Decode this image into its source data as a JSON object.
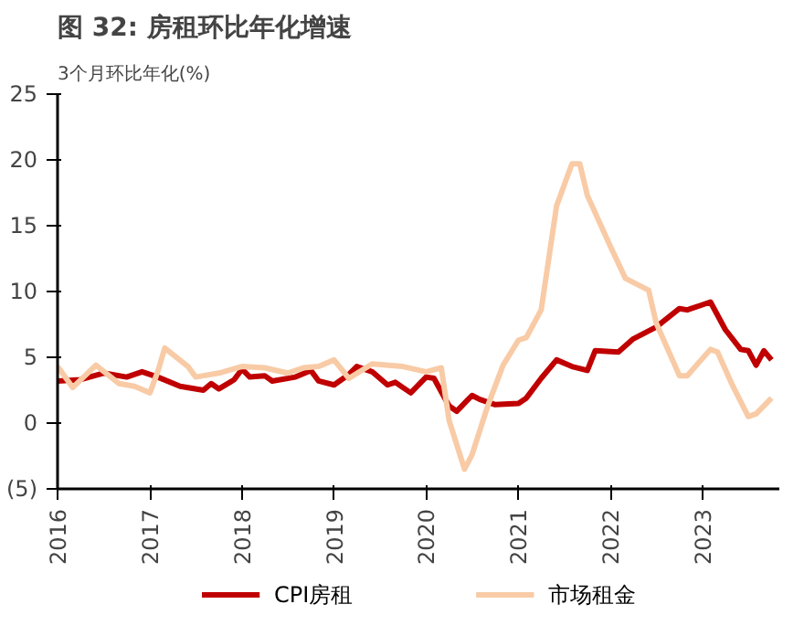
{
  "chart_data": {
    "type": "line",
    "title": "图 32: 房租环比年化增速",
    "ylabel": "3个月环比年化(%)",
    "xlim": [
      "2016-01",
      "2023-11"
    ],
    "xticks": [
      {
        "value": "2016-01",
        "label": "2016"
      },
      {
        "value": "2017-01",
        "label": "2017"
      },
      {
        "value": "2018-01",
        "label": "2018"
      },
      {
        "value": "2019-01",
        "label": "2019"
      },
      {
        "value": "2020-01",
        "label": "2020"
      },
      {
        "value": "2021-01",
        "label": "2021"
      },
      {
        "value": "2022-01",
        "label": "2022"
      },
      {
        "value": "2023-01",
        "label": "2023"
      }
    ],
    "ylim": [
      -5,
      25
    ],
    "yticks": [
      {
        "value": -5,
        "label": "(5)"
      },
      0,
      5,
      10,
      15,
      20,
      25
    ],
    "legend": "bottom",
    "marker": "none",
    "line_style": "solid",
    "series": [
      {
        "name": "CPI房租",
        "color": "#c00000",
        "x": [
          "2016-01",
          "2016-04",
          "2016-07",
          "2016-10",
          "2016-12",
          "2017-02",
          "2017-05",
          "2017-08",
          "2017-09",
          "2017-10",
          "2017-12",
          "2018-01",
          "2018-02",
          "2018-04",
          "2018-05",
          "2018-08",
          "2018-10",
          "2018-11",
          "2019-01",
          "2019-03",
          "2019-04",
          "2019-06",
          "2019-08",
          "2019-09",
          "2019-10",
          "2019-11",
          "2020-01",
          "2020-02",
          "2020-04",
          "2020-05",
          "2020-07",
          "2020-08",
          "2020-10",
          "2021-01",
          "2021-02",
          "2021-04",
          "2021-06",
          "2021-08",
          "2021-10",
          "2021-11",
          "2022-02",
          "2022-04",
          "2022-07",
          "2022-10",
          "2022-11",
          "2023-02",
          "2023-04",
          "2023-06",
          "2023-07",
          "2023-08",
          "2023-09",
          "2023-10"
        ],
        "values": [
          3.2,
          3.3,
          3.8,
          3.5,
          3.9,
          3.5,
          2.8,
          2.5,
          3.0,
          2.6,
          3.3,
          4.1,
          3.5,
          3.6,
          3.2,
          3.5,
          4.0,
          3.2,
          2.9,
          3.7,
          4.3,
          3.9,
          2.9,
          3.1,
          2.7,
          2.3,
          3.5,
          3.4,
          1.3,
          0.9,
          2.1,
          1.8,
          1.4,
          1.5,
          1.9,
          3.4,
          4.8,
          4.3,
          4.0,
          5.5,
          5.4,
          6.4,
          7.3,
          8.7,
          8.6,
          9.2,
          7.1,
          5.6,
          5.5,
          4.4,
          5.5,
          4.8
        ]
      },
      {
        "name": "市场租金",
        "color": "#f8cba6",
        "x": [
          "2016-01",
          "2016-03",
          "2016-06",
          "2016-09",
          "2016-11",
          "2017-01",
          "2017-02",
          "2017-03",
          "2017-06",
          "2017-07",
          "2017-10",
          "2018-01",
          "2018-04",
          "2018-07",
          "2018-09",
          "2018-11",
          "2019-01",
          "2019-03",
          "2019-06",
          "2019-10",
          "2020-01",
          "2020-03",
          "2020-04",
          "2020-06",
          "2020-07",
          "2020-09",
          "2020-11",
          "2021-01",
          "2021-02",
          "2021-04",
          "2021-06",
          "2021-08",
          "2021-09",
          "2021-10",
          "2022-01",
          "2022-03",
          "2022-06",
          "2022-07",
          "2022-10",
          "2022-11",
          "2023-02",
          "2023-03",
          "2023-05",
          "2023-07",
          "2023-08",
          "2023-10"
        ],
        "values": [
          4.3,
          2.7,
          4.4,
          3.0,
          2.8,
          2.3,
          3.9,
          5.7,
          4.3,
          3.5,
          3.8,
          4.3,
          4.2,
          3.8,
          4.2,
          4.3,
          4.8,
          3.4,
          4.5,
          4.3,
          3.9,
          4.2,
          0.2,
          -3.5,
          -2.4,
          1.3,
          4.4,
          6.3,
          6.5,
          8.6,
          16.5,
          19.7,
          19.7,
          17.3,
          13.4,
          11.0,
          10.1,
          7.6,
          3.6,
          3.6,
          5.6,
          5.4,
          2.8,
          0.5,
          0.7,
          1.9
        ]
      }
    ]
  }
}
